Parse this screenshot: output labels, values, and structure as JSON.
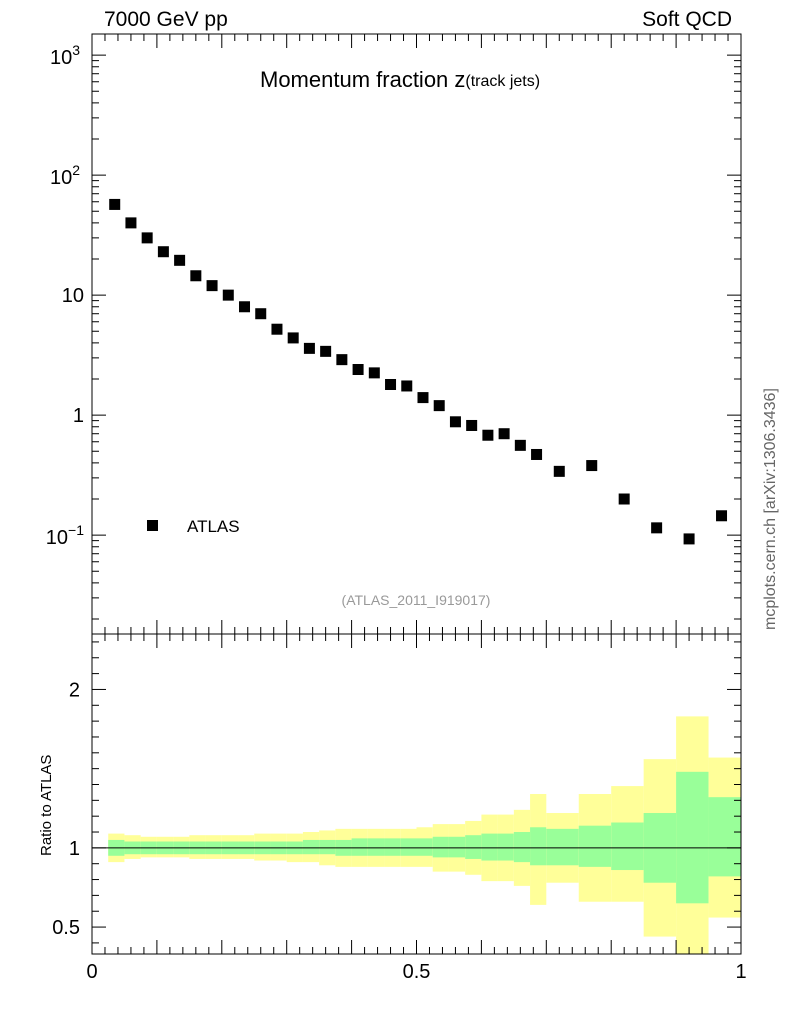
{
  "header": {
    "left": "7000 GeV pp",
    "right": "Soft QCD",
    "side_note": "mcplots.cern.ch [arXiv:1306.3436]"
  },
  "chart_data": {
    "type": "scatter",
    "title_main": "Momentum fraction z",
    "title_sub": "(track jets)",
    "reference": "(ATLAS_2011_I919017)",
    "y_scale": "log",
    "ylim": [
      0.015,
      1500
    ],
    "xlim": [
      0,
      1
    ],
    "legend": {
      "label": "ATLAS",
      "placement": "bottom-left"
    },
    "y_tick_labels": [
      "10^-1",
      "1",
      "10",
      "10^2",
      "10^3"
    ],
    "x_tick_labels": [
      "0",
      "0.5",
      "1"
    ],
    "series": [
      {
        "name": "ATLAS",
        "marker": "square",
        "color": "#000000",
        "x": [
          0.035,
          0.06,
          0.085,
          0.11,
          0.135,
          0.16,
          0.185,
          0.21,
          0.235,
          0.26,
          0.285,
          0.31,
          0.335,
          0.36,
          0.385,
          0.41,
          0.435,
          0.46,
          0.485,
          0.51,
          0.535,
          0.56,
          0.585,
          0.61,
          0.635,
          0.66,
          0.685,
          0.72,
          0.77,
          0.82,
          0.87,
          0.92,
          0.97
        ],
        "y": [
          57,
          40,
          30,
          23,
          19.5,
          14.5,
          12,
          10,
          8,
          7,
          5.2,
          4.4,
          3.6,
          3.4,
          2.9,
          2.4,
          2.25,
          1.8,
          1.75,
          1.4,
          1.2,
          0.88,
          0.82,
          0.68,
          0.7,
          0.56,
          0.47,
          0.34,
          0.38,
          0.2,
          0.115,
          0.093,
          0.145
        ]
      }
    ],
    "ratio": {
      "ylabel": "Ratio to ATLAS",
      "ylim": [
        0.33,
        2.35
      ],
      "y_tick_labels": [
        "0.5",
        "1",
        "2"
      ],
      "reference_line": 1,
      "bins": [
        {
          "x0": 0.025,
          "x1": 0.05,
          "stat_lo": 0.95,
          "stat_hi": 1.05,
          "tot_lo": 0.91,
          "tot_hi": 1.09
        },
        {
          "x0": 0.05,
          "x1": 0.075,
          "stat_lo": 0.96,
          "stat_hi": 1.04,
          "tot_lo": 0.93,
          "tot_hi": 1.08
        },
        {
          "x0": 0.075,
          "x1": 0.1,
          "stat_lo": 0.96,
          "stat_hi": 1.04,
          "tot_lo": 0.94,
          "tot_hi": 1.07
        },
        {
          "x0": 0.1,
          "x1": 0.125,
          "stat_lo": 0.96,
          "stat_hi": 1.04,
          "tot_lo": 0.94,
          "tot_hi": 1.07
        },
        {
          "x0": 0.125,
          "x1": 0.15,
          "stat_lo": 0.96,
          "stat_hi": 1.04,
          "tot_lo": 0.94,
          "tot_hi": 1.07
        },
        {
          "x0": 0.15,
          "x1": 0.175,
          "stat_lo": 0.96,
          "stat_hi": 1.04,
          "tot_lo": 0.93,
          "tot_hi": 1.08
        },
        {
          "x0": 0.175,
          "x1": 0.2,
          "stat_lo": 0.96,
          "stat_hi": 1.04,
          "tot_lo": 0.93,
          "tot_hi": 1.08
        },
        {
          "x0": 0.2,
          "x1": 0.225,
          "stat_lo": 0.96,
          "stat_hi": 1.04,
          "tot_lo": 0.93,
          "tot_hi": 1.08
        },
        {
          "x0": 0.225,
          "x1": 0.25,
          "stat_lo": 0.96,
          "stat_hi": 1.04,
          "tot_lo": 0.93,
          "tot_hi": 1.08
        },
        {
          "x0": 0.25,
          "x1": 0.275,
          "stat_lo": 0.96,
          "stat_hi": 1.04,
          "tot_lo": 0.92,
          "tot_hi": 1.09
        },
        {
          "x0": 0.275,
          "x1": 0.3,
          "stat_lo": 0.96,
          "stat_hi": 1.04,
          "tot_lo": 0.92,
          "tot_hi": 1.09
        },
        {
          "x0": 0.3,
          "x1": 0.325,
          "stat_lo": 0.96,
          "stat_hi": 1.04,
          "tot_lo": 0.91,
          "tot_hi": 1.09
        },
        {
          "x0": 0.325,
          "x1": 0.35,
          "stat_lo": 0.96,
          "stat_hi": 1.05,
          "tot_lo": 0.91,
          "tot_hi": 1.1
        },
        {
          "x0": 0.35,
          "x1": 0.375,
          "stat_lo": 0.96,
          "stat_hi": 1.05,
          "tot_lo": 0.89,
          "tot_hi": 1.11
        },
        {
          "x0": 0.375,
          "x1": 0.4,
          "stat_lo": 0.95,
          "stat_hi": 1.05,
          "tot_lo": 0.88,
          "tot_hi": 1.12
        },
        {
          "x0": 0.4,
          "x1": 0.425,
          "stat_lo": 0.95,
          "stat_hi": 1.06,
          "tot_lo": 0.88,
          "tot_hi": 1.12
        },
        {
          "x0": 0.425,
          "x1": 0.45,
          "stat_lo": 0.95,
          "stat_hi": 1.06,
          "tot_lo": 0.88,
          "tot_hi": 1.12
        },
        {
          "x0": 0.45,
          "x1": 0.475,
          "stat_lo": 0.95,
          "stat_hi": 1.06,
          "tot_lo": 0.88,
          "tot_hi": 1.12
        },
        {
          "x0": 0.475,
          "x1": 0.5,
          "stat_lo": 0.95,
          "stat_hi": 1.06,
          "tot_lo": 0.88,
          "tot_hi": 1.12
        },
        {
          "x0": 0.5,
          "x1": 0.525,
          "stat_lo": 0.95,
          "stat_hi": 1.06,
          "tot_lo": 0.88,
          "tot_hi": 1.13
        },
        {
          "x0": 0.525,
          "x1": 0.55,
          "stat_lo": 0.94,
          "stat_hi": 1.07,
          "tot_lo": 0.85,
          "tot_hi": 1.15
        },
        {
          "x0": 0.55,
          "x1": 0.575,
          "stat_lo": 0.94,
          "stat_hi": 1.07,
          "tot_lo": 0.85,
          "tot_hi": 1.15
        },
        {
          "x0": 0.575,
          "x1": 0.6,
          "stat_lo": 0.93,
          "stat_hi": 1.08,
          "tot_lo": 0.83,
          "tot_hi": 1.17
        },
        {
          "x0": 0.6,
          "x1": 0.625,
          "stat_lo": 0.92,
          "stat_hi": 1.09,
          "tot_lo": 0.79,
          "tot_hi": 1.21
        },
        {
          "x0": 0.625,
          "x1": 0.65,
          "stat_lo": 0.92,
          "stat_hi": 1.09,
          "tot_lo": 0.79,
          "tot_hi": 1.21
        },
        {
          "x0": 0.65,
          "x1": 0.675,
          "stat_lo": 0.91,
          "stat_hi": 1.1,
          "tot_lo": 0.76,
          "tot_hi": 1.24
        },
        {
          "x0": 0.675,
          "x1": 0.7,
          "stat_lo": 0.89,
          "stat_hi": 1.13,
          "tot_lo": 0.64,
          "tot_hi": 1.34
        },
        {
          "x0": 0.7,
          "x1": 0.75,
          "stat_lo": 0.89,
          "stat_hi": 1.12,
          "tot_lo": 0.78,
          "tot_hi": 1.22
        },
        {
          "x0": 0.75,
          "x1": 0.8,
          "stat_lo": 0.88,
          "stat_hi": 1.14,
          "tot_lo": 0.66,
          "tot_hi": 1.34
        },
        {
          "x0": 0.8,
          "x1": 0.85,
          "stat_lo": 0.86,
          "stat_hi": 1.16,
          "tot_lo": 0.66,
          "tot_hi": 1.39
        },
        {
          "x0": 0.85,
          "x1": 0.9,
          "stat_lo": 0.78,
          "stat_hi": 1.22,
          "tot_lo": 0.44,
          "tot_hi": 1.56
        },
        {
          "x0": 0.9,
          "x1": 0.95,
          "stat_lo": 0.65,
          "stat_hi": 1.48,
          "tot_lo": 0.33,
          "tot_hi": 1.83
        },
        {
          "x0": 0.95,
          "x1": 1.0,
          "stat_lo": 0.82,
          "stat_hi": 1.32,
          "tot_lo": 0.56,
          "tot_hi": 1.57
        }
      ],
      "colors": {
        "stat": "#99ff99",
        "total": "#ffff99",
        "line": "#000000"
      }
    }
  }
}
